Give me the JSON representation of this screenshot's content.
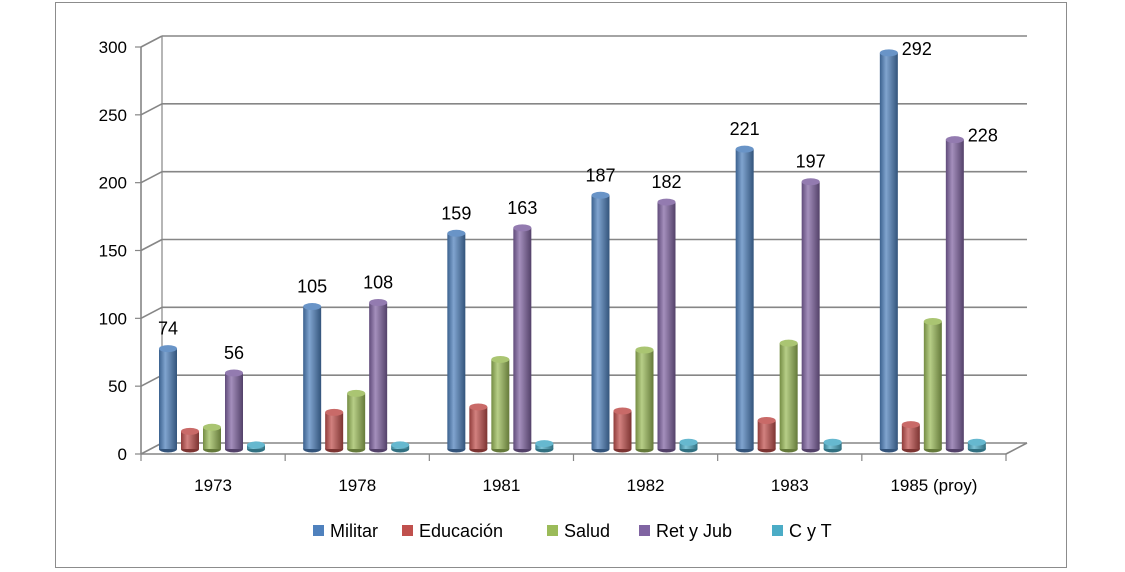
{
  "chart_data": {
    "type": "bar",
    "title": "",
    "xlabel": "",
    "ylabel": "",
    "categories": [
      "1973",
      "1978",
      "1981",
      "1982",
      "1983",
      "1985 (proy)"
    ],
    "ylim": [
      0,
      300
    ],
    "yticks": [
      0,
      50,
      100,
      150,
      200,
      250,
      300
    ],
    "grid": true,
    "legend_position": "bottom",
    "series": [
      {
        "name": "Militar",
        "color": "#4f81bd",
        "values": [
          74,
          105,
          159,
          187,
          221,
          292
        ],
        "labels": [
          "74",
          "105",
          "159",
          "187",
          "221",
          "292"
        ]
      },
      {
        "name": "Educación",
        "color": "#c0504d",
        "values": [
          13,
          27,
          31,
          28,
          21,
          18
        ],
        "labels": []
      },
      {
        "name": "Salud",
        "color": "#9bbb59",
        "values": [
          16,
          41,
          66,
          73,
          78,
          94
        ],
        "labels": []
      },
      {
        "name": "Ret y Jub",
        "color": "#8064a2",
        "values": [
          56,
          108,
          163,
          182,
          197,
          228
        ],
        "labels": [
          "56",
          "108",
          "163",
          "182",
          "197",
          "228"
        ]
      },
      {
        "name": "C y T",
        "color": "#4bacc6",
        "values": [
          3,
          3,
          4,
          5,
          5,
          5
        ],
        "labels": []
      }
    ]
  }
}
